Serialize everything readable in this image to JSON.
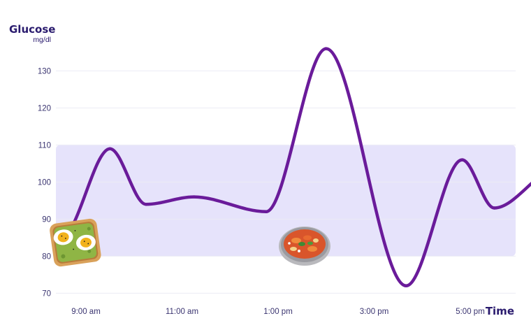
{
  "chart_data": {
    "type": "line",
    "ylabel": "Glucose",
    "yunit": "mg/dl",
    "xlabel": "Time",
    "ylim": [
      68,
      138
    ],
    "y_ticks": [
      70,
      80,
      90,
      100,
      110,
      120,
      130
    ],
    "target_range": [
      80,
      110
    ],
    "x_ticks": [
      "9:00 am",
      "11:00 am",
      "1:00 pm",
      "3:00 pm",
      "5:00 pm"
    ],
    "grid": true,
    "series": [
      {
        "values": [
          {
            "x": "8:45 am",
            "y": 89
          },
          {
            "x": "9:30 am",
            "y": 109
          },
          {
            "x": "10:15 am",
            "y": 94
          },
          {
            "x": "11:15 am",
            "y": 96
          },
          {
            "x": "12:45 pm",
            "y": 92
          },
          {
            "x": "2:00 pm",
            "y": 136
          },
          {
            "x": "3:40 pm",
            "y": 72
          },
          {
            "x": "4:50 pm",
            "y": 106
          },
          {
            "x": "5:30 pm",
            "y": 93
          },
          {
            "x": "6:30 pm",
            "y": 102
          }
        ]
      }
    ],
    "annotations": [
      {
        "x": "8:45 am",
        "icon": "avocado-toast-with-eggs-icon"
      },
      {
        "x": "1:10 pm",
        "icon": "pasta-bowl-icon"
      }
    ]
  },
  "colors": {
    "line": "#6a1b9a",
    "target_band": "#e6e3fb",
    "grid": "#ececf5",
    "text": "#2a1b6e"
  }
}
